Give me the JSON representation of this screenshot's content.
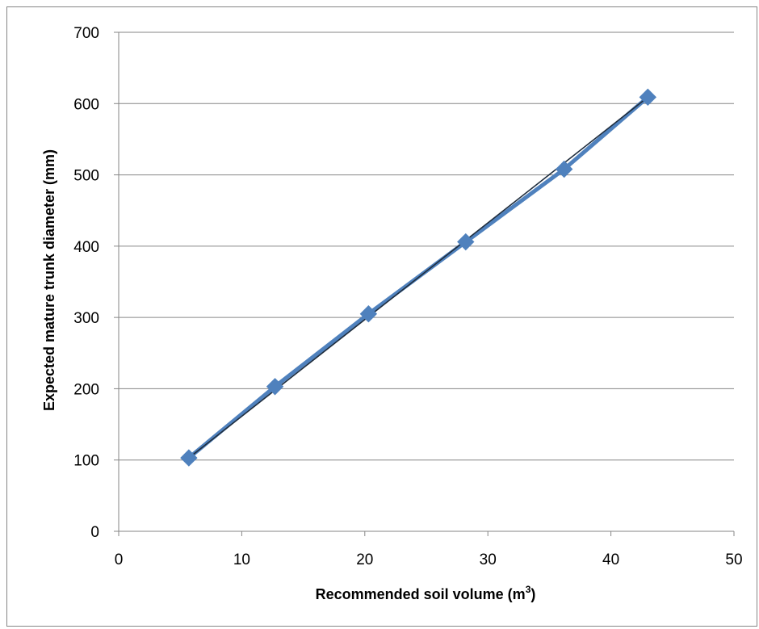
{
  "chart_data": {
    "type": "scatter",
    "title": "",
    "xlabel": "Recommended soil volume (m",
    "xlabel_sup": "3",
    "xlabel_suffix": ")",
    "ylabel": "Expected mature trunk diameter (mm)",
    "xlim": [
      0,
      50
    ],
    "ylim": [
      0,
      700
    ],
    "xticks": [
      0,
      10,
      20,
      30,
      40,
      50
    ],
    "yticks": [
      0,
      100,
      200,
      300,
      400,
      500,
      600,
      700
    ],
    "grid": "horizontal",
    "legend": "none",
    "series": [
      {
        "marker": "diamond",
        "line": "smooth",
        "values": [
          {
            "x": 5.7,
            "y": 103
          },
          {
            "x": 12.7,
            "y": 203
          },
          {
            "x": 20.3,
            "y": 305
          },
          {
            "x": 28.2,
            "y": 406
          },
          {
            "x": 36.2,
            "y": 508
          },
          {
            "x": 43.0,
            "y": 609
          }
        ]
      }
    ],
    "trendline": {
      "type": "linear",
      "from": {
        "x": 5.7,
        "y": 103
      },
      "to": {
        "x": 43.0,
        "y": 609
      }
    },
    "colors": {
      "series": "#4f81bd",
      "trendline": "#1f2d3d",
      "grid": "#868686",
      "axis": "#868686"
    }
  }
}
